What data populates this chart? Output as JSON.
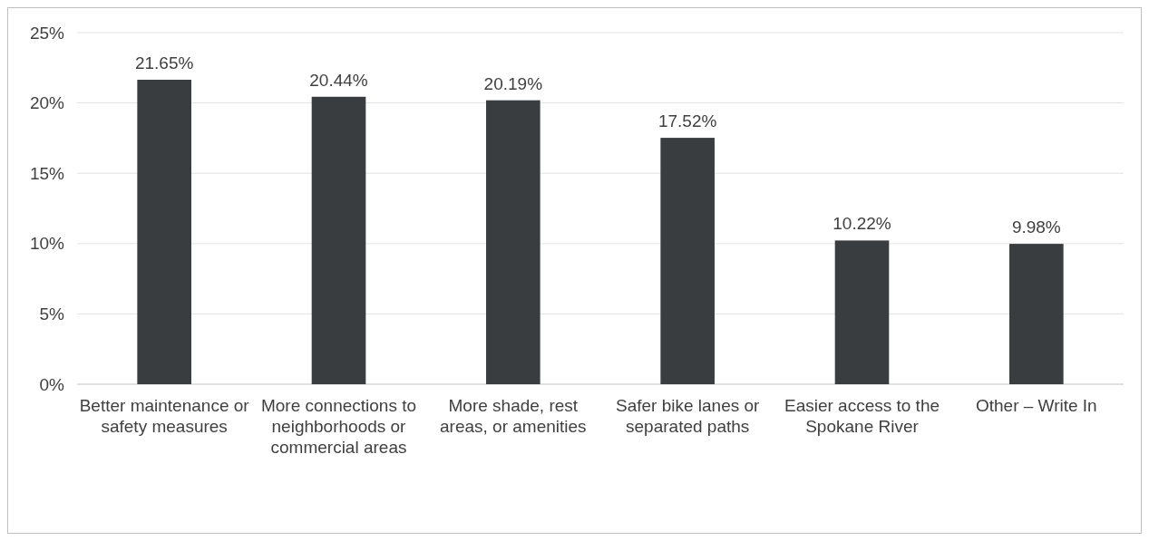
{
  "chart_data": {
    "type": "bar",
    "categories": [
      "Better maintenance or safety measures",
      "More connections to neighborhoods or commercial areas",
      "More shade, rest areas, or amenities",
      "Safer bike lanes or separated paths",
      "Easier access to the Spokane River",
      "Other – Write In"
    ],
    "values": [
      21.65,
      20.44,
      20.19,
      17.52,
      10.22,
      9.98
    ],
    "value_labels": [
      "21.65%",
      "20.44%",
      "20.19%",
      "17.52%",
      "10.22%",
      "9.98%"
    ],
    "color": "#3a3d40",
    "ylim": [
      0,
      25
    ],
    "yticks": [
      {
        "value": 0,
        "label": "0%"
      },
      {
        "value": 5,
        "label": "5%"
      },
      {
        "value": 10,
        "label": "10%"
      },
      {
        "value": 15,
        "label": "15%"
      },
      {
        "value": 20,
        "label": "20%"
      },
      {
        "value": 25,
        "label": "25%"
      }
    ],
    "grid": "y"
  }
}
